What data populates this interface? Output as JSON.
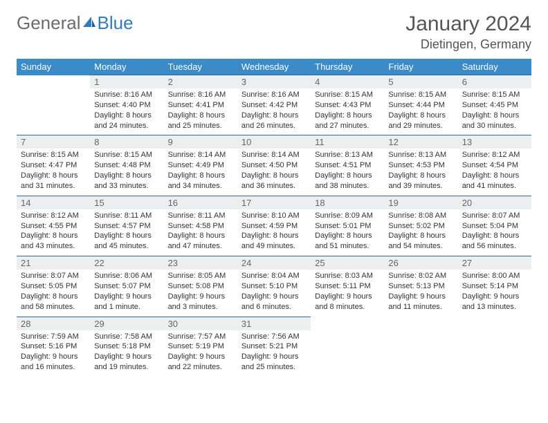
{
  "brand": {
    "part1": "General",
    "part2": "Blue"
  },
  "title": {
    "month": "January 2024",
    "location": "Dietingen, Germany"
  },
  "colors": {
    "header_bg": "#3b8bc9",
    "header_text": "#ffffff",
    "row_border": "#2a6aa0",
    "daynum_bg": "#eceef0",
    "daynum_text": "#666666",
    "body_text": "#333333",
    "title_text": "#555555",
    "brand_gray": "#6b6b6b",
    "brand_blue": "#2f7bbf"
  },
  "typography": {
    "title_fontsize": 30,
    "location_fontsize": 18,
    "weekday_fontsize": 13,
    "daynum_fontsize": 13,
    "cell_fontsize": 11
  },
  "weekdays": [
    "Sunday",
    "Monday",
    "Tuesday",
    "Wednesday",
    "Thursday",
    "Friday",
    "Saturday"
  ],
  "weeks": [
    [
      null,
      {
        "n": "1",
        "sr": "8:16 AM",
        "ss": "4:40 PM",
        "dl": "8 hours and 24 minutes."
      },
      {
        "n": "2",
        "sr": "8:16 AM",
        "ss": "4:41 PM",
        "dl": "8 hours and 25 minutes."
      },
      {
        "n": "3",
        "sr": "8:16 AM",
        "ss": "4:42 PM",
        "dl": "8 hours and 26 minutes."
      },
      {
        "n": "4",
        "sr": "8:15 AM",
        "ss": "4:43 PM",
        "dl": "8 hours and 27 minutes."
      },
      {
        "n": "5",
        "sr": "8:15 AM",
        "ss": "4:44 PM",
        "dl": "8 hours and 29 minutes."
      },
      {
        "n": "6",
        "sr": "8:15 AM",
        "ss": "4:45 PM",
        "dl": "8 hours and 30 minutes."
      }
    ],
    [
      {
        "n": "7",
        "sr": "8:15 AM",
        "ss": "4:47 PM",
        "dl": "8 hours and 31 minutes."
      },
      {
        "n": "8",
        "sr": "8:15 AM",
        "ss": "4:48 PM",
        "dl": "8 hours and 33 minutes."
      },
      {
        "n": "9",
        "sr": "8:14 AM",
        "ss": "4:49 PM",
        "dl": "8 hours and 34 minutes."
      },
      {
        "n": "10",
        "sr": "8:14 AM",
        "ss": "4:50 PM",
        "dl": "8 hours and 36 minutes."
      },
      {
        "n": "11",
        "sr": "8:13 AM",
        "ss": "4:51 PM",
        "dl": "8 hours and 38 minutes."
      },
      {
        "n": "12",
        "sr": "8:13 AM",
        "ss": "4:53 PM",
        "dl": "8 hours and 39 minutes."
      },
      {
        "n": "13",
        "sr": "8:12 AM",
        "ss": "4:54 PM",
        "dl": "8 hours and 41 minutes."
      }
    ],
    [
      {
        "n": "14",
        "sr": "8:12 AM",
        "ss": "4:55 PM",
        "dl": "8 hours and 43 minutes."
      },
      {
        "n": "15",
        "sr": "8:11 AM",
        "ss": "4:57 PM",
        "dl": "8 hours and 45 minutes."
      },
      {
        "n": "16",
        "sr": "8:11 AM",
        "ss": "4:58 PM",
        "dl": "8 hours and 47 minutes."
      },
      {
        "n": "17",
        "sr": "8:10 AM",
        "ss": "4:59 PM",
        "dl": "8 hours and 49 minutes."
      },
      {
        "n": "18",
        "sr": "8:09 AM",
        "ss": "5:01 PM",
        "dl": "8 hours and 51 minutes."
      },
      {
        "n": "19",
        "sr": "8:08 AM",
        "ss": "5:02 PM",
        "dl": "8 hours and 54 minutes."
      },
      {
        "n": "20",
        "sr": "8:07 AM",
        "ss": "5:04 PM",
        "dl": "8 hours and 56 minutes."
      }
    ],
    [
      {
        "n": "21",
        "sr": "8:07 AM",
        "ss": "5:05 PM",
        "dl": "8 hours and 58 minutes."
      },
      {
        "n": "22",
        "sr": "8:06 AM",
        "ss": "5:07 PM",
        "dl": "9 hours and 1 minute."
      },
      {
        "n": "23",
        "sr": "8:05 AM",
        "ss": "5:08 PM",
        "dl": "9 hours and 3 minutes."
      },
      {
        "n": "24",
        "sr": "8:04 AM",
        "ss": "5:10 PM",
        "dl": "9 hours and 6 minutes."
      },
      {
        "n": "25",
        "sr": "8:03 AM",
        "ss": "5:11 PM",
        "dl": "9 hours and 8 minutes."
      },
      {
        "n": "26",
        "sr": "8:02 AM",
        "ss": "5:13 PM",
        "dl": "9 hours and 11 minutes."
      },
      {
        "n": "27",
        "sr": "8:00 AM",
        "ss": "5:14 PM",
        "dl": "9 hours and 13 minutes."
      }
    ],
    [
      {
        "n": "28",
        "sr": "7:59 AM",
        "ss": "5:16 PM",
        "dl": "9 hours and 16 minutes."
      },
      {
        "n": "29",
        "sr": "7:58 AM",
        "ss": "5:18 PM",
        "dl": "9 hours and 19 minutes."
      },
      {
        "n": "30",
        "sr": "7:57 AM",
        "ss": "5:19 PM",
        "dl": "9 hours and 22 minutes."
      },
      {
        "n": "31",
        "sr": "7:56 AM",
        "ss": "5:21 PM",
        "dl": "9 hours and 25 minutes."
      },
      null,
      null,
      null
    ]
  ],
  "labels": {
    "sunrise": "Sunrise:",
    "sunset": "Sunset:",
    "daylight": "Daylight:"
  }
}
